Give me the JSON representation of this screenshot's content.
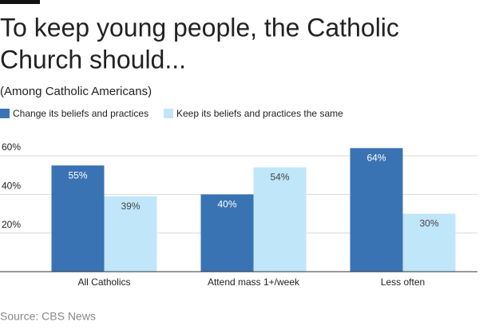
{
  "chart_data": {
    "type": "bar",
    "title": [
      "To keep young people, the Catholic",
      "Church should..."
    ],
    "subtitle": "(Among Catholic Americans)",
    "source": "Source: CBS News",
    "categories": [
      "All Catholics",
      "Attend mass 1+/week",
      "Less often"
    ],
    "series": [
      {
        "name": "Change its beliefs and practices",
        "color": "#3a73b3",
        "values": [
          55,
          40,
          64
        ],
        "value_labels": [
          "55%",
          "40%",
          "64%"
        ]
      },
      {
        "name": "Keep its beliefs and practices the same",
        "color": "#c0e6fa",
        "values": [
          39,
          54,
          30
        ],
        "value_labels": [
          "39%",
          "54%",
          "30%"
        ]
      }
    ],
    "ylim": [
      0,
      60
    ],
    "yticks": [
      {
        "value": 20,
        "label": "20%"
      },
      {
        "value": 40,
        "label": "40%"
      },
      {
        "value": 60,
        "label": "60%"
      }
    ],
    "grid": true
  }
}
